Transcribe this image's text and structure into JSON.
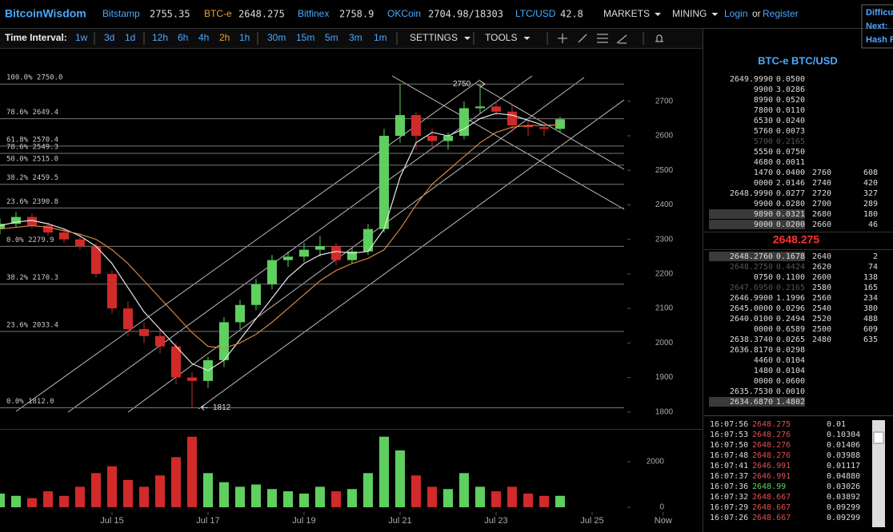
{
  "header": {
    "brand": "BitcoinWisdom",
    "markets": [
      {
        "name": "Bitstamp",
        "price": "2755.35"
      },
      {
        "name": "BTC-e",
        "price": "2648.275"
      },
      {
        "name": "Bitfinex",
        "price": "2758.9"
      },
      {
        "name": "OKCoin",
        "price": "2704.98/18303"
      },
      {
        "name": "LTC/USD",
        "price": "42.8"
      }
    ],
    "menus": [
      "MARKETS",
      "MINING"
    ],
    "login": "Login",
    "or": "or",
    "register": "Register",
    "side": [
      "Difficu",
      "Next:",
      "Hash R"
    ]
  },
  "toolbar": {
    "label": "Time Interval:",
    "intervals": [
      "1w",
      "3d",
      "1d",
      "12h",
      "6h",
      "4h",
      "2h",
      "1h",
      "30m",
      "15m",
      "5m",
      "3m",
      "1m"
    ],
    "menus": [
      "SETTINGS",
      "TOOLS"
    ]
  },
  "chart_data": {
    "type": "candlestick",
    "x": [
      12.667,
      13,
      13.333,
      13.667,
      14,
      14.333,
      14.667,
      15,
      15.333,
      15.667,
      16,
      16.333,
      16.667,
      17,
      17.333,
      17.667,
      18,
      18.333,
      18.667,
      19,
      19.333,
      19.667,
      20,
      20.333,
      20.667,
      21,
      21.333,
      21.667,
      22,
      22.333,
      22.667,
      23,
      23.333,
      23.667,
      24,
      24.333
    ],
    "open": [
      2330,
      2345,
      2365,
      2340,
      2320,
      2300,
      2280,
      2200,
      2100,
      2040,
      2020,
      1990,
      1900,
      1890,
      1950,
      2060,
      2110,
      2170,
      2240,
      2250,
      2270,
      2280,
      2240,
      2265,
      2330,
      2600,
      2660,
      2600,
      2585,
      2600,
      2680,
      2685,
      2670,
      2630,
      2625,
      2620
    ],
    "high": [
      2360,
      2380,
      2375,
      2350,
      2330,
      2315,
      2290,
      2210,
      2120,
      2060,
      2040,
      2000,
      1915,
      1960,
      2075,
      2125,
      2185,
      2255,
      2265,
      2290,
      2310,
      2290,
      2275,
      2345,
      2620,
      2750,
      2670,
      2620,
      2610,
      2700,
      2750,
      2700,
      2690,
      2645,
      2640,
      2655
    ],
    "low": [
      2315,
      2335,
      2330,
      2310,
      2290,
      2270,
      2190,
      2085,
      2020,
      2000,
      1970,
      1880,
      1812,
      1870,
      1930,
      2040,
      2095,
      2155,
      2220,
      2235,
      2250,
      2225,
      2230,
      2255,
      2320,
      2580,
      2560,
      2570,
      2560,
      2590,
      2665,
      2660,
      2610,
      2600,
      2600,
      2610
    ],
    "close": [
      2345,
      2365,
      2340,
      2320,
      2300,
      2280,
      2200,
      2100,
      2040,
      2020,
      1990,
      1900,
      1890,
      1950,
      2060,
      2110,
      2170,
      2240,
      2250,
      2270,
      2280,
      2240,
      2265,
      2330,
      2600,
      2660,
      2600,
      2585,
      2600,
      2680,
      2685,
      2670,
      2630,
      2625,
      2620,
      2648
    ],
    "volume": [
      600,
      500,
      400,
      700,
      500,
      900,
      1500,
      1800,
      1200,
      900,
      1400,
      2200,
      3100,
      1500,
      1100,
      900,
      1000,
      800,
      700,
      600,
      900,
      700,
      800,
      1500,
      3100,
      2500,
      1400,
      900,
      800,
      1500,
      900,
      700,
      900,
      600,
      500,
      500
    ],
    "moving_averages": [
      {
        "color": "#e8e8e8",
        "values": [
          2340,
          2350,
          2355,
          2345,
          2330,
          2310,
          2280,
          2230,
          2160,
          2090,
          2040,
          1990,
          1940,
          1920,
          1950,
          2010,
          2070,
          2130,
          2190,
          2230,
          2255,
          2265,
          2260,
          2265,
          2330,
          2480,
          2580,
          2610,
          2600,
          2620,
          2650,
          2665,
          2660,
          2645,
          2630,
          2632
        ]
      },
      {
        "color": "#d08840",
        "values": [
          2330,
          2335,
          2340,
          2335,
          2325,
          2315,
          2300,
          2270,
          2230,
          2180,
          2130,
          2080,
          2030,
          1990,
          1985,
          2000,
          2025,
          2060,
          2100,
          2140,
          2180,
          2210,
          2230,
          2245,
          2270,
          2330,
          2400,
          2460,
          2500,
          2540,
          2580,
          2610,
          2625,
          2630,
          2630,
          2632
        ]
      }
    ],
    "up_color": "#5fcf5f",
    "down_color": "#d02a2a",
    "xlim": [
      12.667,
      27.167
    ],
    "xticks": [
      {
        "value": 15,
        "label": "Jul 15"
      },
      {
        "value": 17,
        "label": "Jul 17"
      },
      {
        "value": 19,
        "label": "Jul 19"
      },
      {
        "value": 21,
        "label": "Jul 21"
      },
      {
        "value": 23,
        "label": "Jul 23"
      },
      {
        "value": 25,
        "label": "Jul 25"
      },
      {
        "value": 26.48,
        "label": "Now"
      }
    ],
    "ylim": [
      1767,
      2850
    ],
    "yticks": [
      1800,
      1900,
      2000,
      2100,
      2200,
      2300,
      2400,
      2500,
      2600,
      2700
    ],
    "volume_ylim": [
      0,
      3300
    ],
    "volume_yticks": [
      0,
      2000
    ],
    "fib_levels": [
      2750,
      2649.4,
      2570.4,
      2549.3,
      2515,
      2459.5,
      2390.8,
      2279.9,
      2170.3,
      2033.4,
      1812
    ],
    "fib_labels": [
      "100.0% 2750.0",
      "78.6% 2649.4",
      "61.8% 2570.4",
      "78.6% 2549.3",
      "50.0% 2515.0",
      "38.2% 2459.5",
      "23.6% 2390.8",
      "0.0% 2279.9",
      "38.2% 2170.3",
      "23.6% 2033.4",
      "0.0% 1812.0"
    ],
    "annotations": [
      {
        "text": "2750",
        "x": 22.1,
        "y": 2750
      },
      {
        "text": "1812",
        "x": 17.1,
        "y": 1812
      }
    ]
  },
  "order_book": {
    "title": "BTC-e BTC/USD",
    "asks": [
      [
        "2649.9990",
        "0.0500"
      ],
      [
        "9900",
        "3.0286"
      ],
      [
        "8990",
        "0.0520"
      ],
      [
        "7800",
        "0.0110"
      ],
      [
        "6530",
        "0.0240"
      ],
      [
        "5760",
        "0.0073"
      ],
      [
        "5700",
        "0.2165"
      ],
      [
        "5550",
        "0.0750"
      ],
      [
        "4680",
        "0.0011"
      ],
      [
        "1470",
        "0.0400"
      ],
      [
        "0000",
        "2.0146"
      ],
      [
        "2648.9990",
        "0.0277"
      ],
      [
        "9900",
        "0.0280"
      ],
      [
        "9890",
        "0.0321"
      ],
      [
        "9000",
        "0.0200"
      ]
    ],
    "ask_depth": [
      [
        "2760",
        "608"
      ],
      [
        "2740",
        "420"
      ],
      [
        "2720",
        "327"
      ],
      [
        "2700",
        "289"
      ],
      [
        "2680",
        "180"
      ],
      [
        "2660",
        "46"
      ]
    ],
    "last": "2648.275",
    "bids": [
      [
        "2648.2760",
        "0.1678"
      ],
      [
        "2648.2750",
        "0.4424"
      ],
      [
        "0750",
        "0.1100"
      ],
      [
        "2647.6950",
        "0.2165"
      ],
      [
        "2646.9900",
        "1.1996"
      ],
      [
        "2645.0000",
        "0.0296"
      ],
      [
        "2640.0100",
        "0.2494"
      ],
      [
        "0000",
        "0.6589"
      ],
      [
        "2638.3740",
        "0.0265"
      ],
      [
        "2636.8170",
        "0.0298"
      ],
      [
        "4460",
        "0.0104"
      ],
      [
        "1480",
        "0.0104"
      ],
      [
        "0000",
        "0.0600"
      ],
      [
        "2635.7530",
        "0.0010"
      ],
      [
        "2634.6870",
        "1.4802"
      ]
    ],
    "bid_depth": [
      [
        "2640",
        "2"
      ],
      [
        "2620",
        "74"
      ],
      [
        "2600",
        "138"
      ],
      [
        "2580",
        "165"
      ],
      [
        "2560",
        "234"
      ],
      [
        "2540",
        "380"
      ],
      [
        "2520",
        "488"
      ],
      [
        "2500",
        "609"
      ],
      [
        "2480",
        "635"
      ]
    ]
  },
  "trades": {
    "times": [
      "16:07:56",
      "16:07:53",
      "16:07:50",
      "16:07:48",
      "16:07:41",
      "16:07:37",
      "16:07:36",
      "16:07:32",
      "16:07:29",
      "16:07:26"
    ],
    "prices": [
      "2648.275",
      "2648.276",
      "2648.276",
      "2648.276",
      "2646.991",
      "2646.991",
      "2648.99",
      "2648.667",
      "2648.667",
      "2648.667"
    ],
    "amounts": [
      "0.01",
      "0.10304",
      "0.01406",
      "0.03988",
      "0.01117",
      "0.04880",
      "0.03026",
      "0.03892",
      "0.09299",
      "0.09299"
    ],
    "colors": [
      "#e05050",
      "#e05050",
      "#e05050",
      "#e05050",
      "#e05050",
      "#e05050",
      "#60d060",
      "#e05050",
      "#e05050",
      "#e05050"
    ]
  }
}
